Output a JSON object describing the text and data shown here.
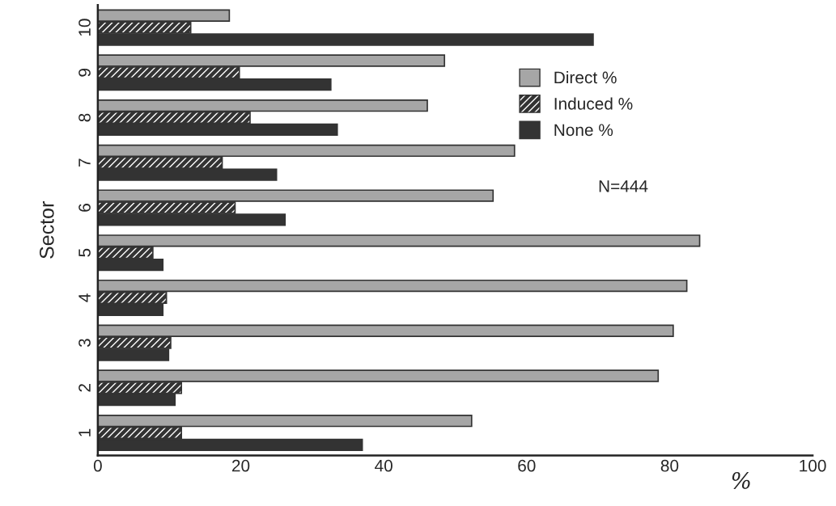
{
  "chart_data": {
    "type": "bar",
    "orientation": "horizontal",
    "ylabel": "Sector",
    "xlabel": "%",
    "categories": [
      "10",
      "9",
      "8",
      "7",
      "6",
      "5",
      "4",
      "3",
      "2",
      "1"
    ],
    "series": [
      {
        "name": "Direct %",
        "color": "#a6a6a6",
        "values": [
          18.4,
          48.5,
          46.1,
          58.3,
          55.3,
          84.2,
          82.4,
          80.5,
          78.4,
          52.3
        ]
      },
      {
        "name": "Induced %",
        "color": "#333333",
        "values": [
          13.0,
          19.8,
          21.3,
          17.4,
          19.2,
          7.7,
          9.6,
          10.2,
          11.7,
          11.7
        ]
      },
      {
        "name": "None %",
        "color": "#333333",
        "values": [
          69.3,
          32.6,
          33.5,
          25.0,
          26.2,
          9.1,
          9.1,
          9.9,
          10.8,
          37.0
        ]
      }
    ],
    "xlim": [
      0,
      100
    ],
    "xticks": [
      0,
      20,
      40,
      60,
      80,
      100
    ],
    "legend": "right",
    "grid": false,
    "annotations": [
      "N=444"
    ]
  }
}
